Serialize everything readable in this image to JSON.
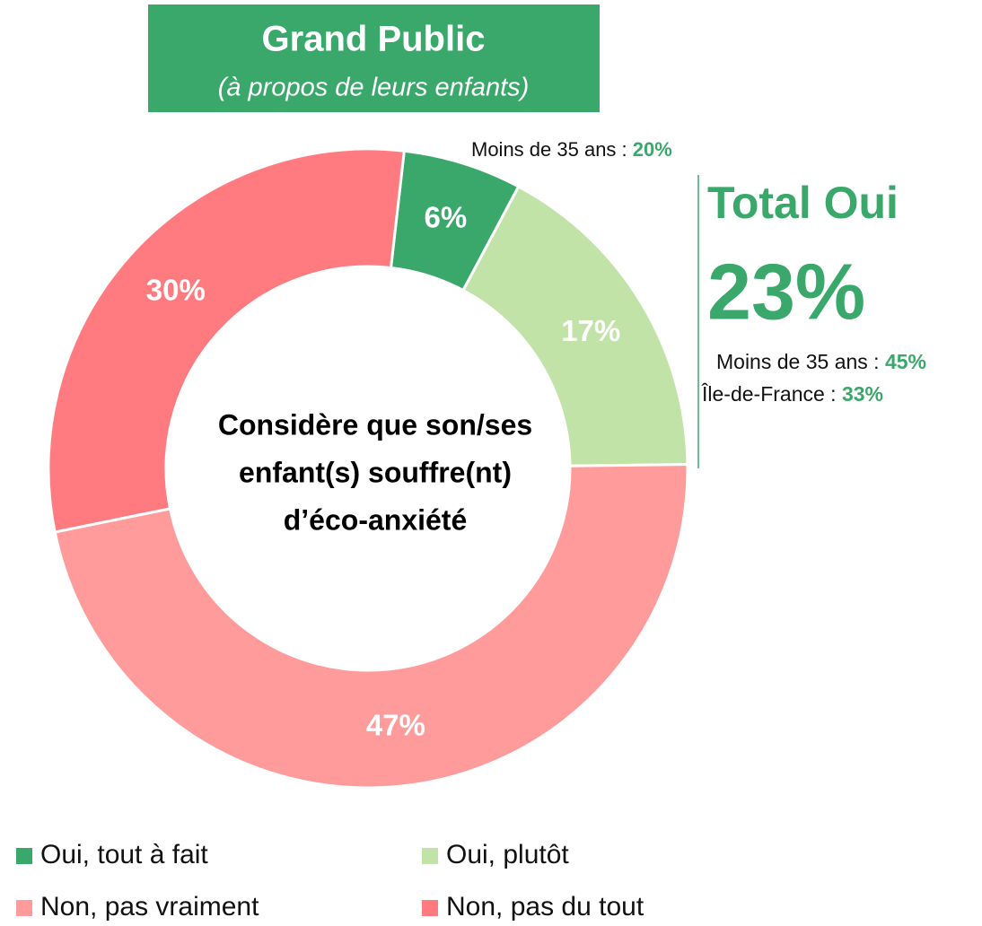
{
  "chart_data": {
    "type": "donut",
    "title": "Grand Public",
    "subtitle": "(à propos de leurs enfants)",
    "center_label": [
      "Considère que son/ses",
      "enfant(s) souffre(nt)",
      "d’éco-anxiété"
    ],
    "categories": [
      "Oui, tout à fait",
      "Oui, plutôt",
      "Non, pas vraiment",
      "Non, pas du tout"
    ],
    "values": [
      6,
      17,
      47,
      30
    ],
    "value_labels": [
      "6%",
      "17%",
      "47%",
      "30%"
    ],
    "colors": [
      "#3aa86b",
      "#c2e3a8",
      "#ff9b9b",
      "#ff7b7f"
    ],
    "top_annotation": {
      "label": "Moins de 35 ans : ",
      "value": "20%"
    },
    "total": {
      "title": "Total Oui",
      "value": "23%",
      "details": [
        {
          "label": "Moins de 35 ans : ",
          "value": "45%"
        },
        {
          "label": "Île-de-France : ",
          "value": "33%"
        }
      ]
    }
  }
}
